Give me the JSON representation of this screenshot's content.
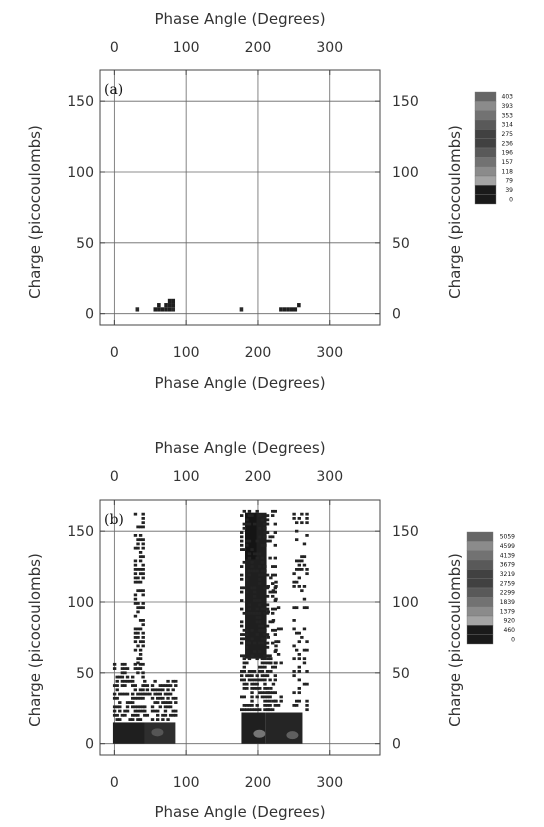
{
  "chart_data": [
    {
      "type": "heatmap",
      "panel_label": "(a)",
      "xlabel": "Phase Angle (Degrees)",
      "ylabel": "Charge (picocoulombs)",
      "xlim": [
        -20,
        370
      ],
      "ylim": [
        -8,
        172
      ],
      "xticks": [
        0,
        100,
        200,
        300
      ],
      "yticks": [
        0,
        50,
        100,
        150
      ],
      "grid": true,
      "colorbar": {
        "labels": [
          "403",
          "393",
          "353",
          "314",
          "275",
          "236",
          "196",
          "157",
          "118",
          "79",
          "39",
          "0"
        ]
      },
      "points": [
        {
          "x": 32,
          "y": 3,
          "level": 0.9
        },
        {
          "x": 57,
          "y": 3,
          "level": 0.95
        },
        {
          "x": 62,
          "y": 3,
          "level": 0.95
        },
        {
          "x": 67,
          "y": 3,
          "level": 0.95
        },
        {
          "x": 72,
          "y": 3,
          "level": 0.95
        },
        {
          "x": 77,
          "y": 3,
          "level": 0.95
        },
        {
          "x": 82,
          "y": 3,
          "level": 0.9
        },
        {
          "x": 62,
          "y": 6,
          "level": 0.95
        },
        {
          "x": 72,
          "y": 6,
          "level": 0.95
        },
        {
          "x": 77,
          "y": 6,
          "level": 0.95
        },
        {
          "x": 82,
          "y": 6,
          "level": 0.95
        },
        {
          "x": 77,
          "y": 9,
          "level": 0.95
        },
        {
          "x": 82,
          "y": 9,
          "level": 0.95
        },
        {
          "x": 177,
          "y": 3,
          "level": 0.9
        },
        {
          "x": 232,
          "y": 3,
          "level": 0.95
        },
        {
          "x": 237,
          "y": 3,
          "level": 0.95
        },
        {
          "x": 242,
          "y": 3,
          "level": 0.95
        },
        {
          "x": 247,
          "y": 3,
          "level": 0.95
        },
        {
          "x": 252,
          "y": 3,
          "level": 0.95
        },
        {
          "x": 257,
          "y": 6,
          "level": 0.95
        }
      ]
    },
    {
      "type": "heatmap",
      "panel_label": "(b)",
      "xlabel": "Phase Angle (Degrees)",
      "ylabel": "Charge (picocoulombs)",
      "xlim": [
        -20,
        370
      ],
      "ylim": [
        -8,
        172
      ],
      "xticks": [
        0,
        100,
        200,
        300
      ],
      "yticks": [
        0,
        50,
        100,
        150
      ],
      "grid": true,
      "colorbar": {
        "labels": [
          "5059",
          "4599",
          "4139",
          "3679",
          "3219",
          "2759",
          "2299",
          "1839",
          "1379",
          "920",
          "460",
          "0"
        ]
      },
      "regions": [
        {
          "x0": -2,
          "x1": 42,
          "y0": 0,
          "y1": 15,
          "level": 0.95
        },
        {
          "x0": 42,
          "x1": 85,
          "y0": 0,
          "y1": 15,
          "level": 0.88
        },
        {
          "x0": 177,
          "x1": 210,
          "y0": 0,
          "y1": 22,
          "level": 0.95
        },
        {
          "x0": 210,
          "x1": 262,
          "y0": 0,
          "y1": 22,
          "level": 0.92
        },
        {
          "x0": 182,
          "x1": 212,
          "y0": 60,
          "y1": 163,
          "level": 0.95
        },
        {
          "x0": 182,
          "x1": 198,
          "y0": 130,
          "y1": 163,
          "level": 1.0
        }
      ],
      "bright_spots": [
        {
          "x": 202,
          "y": 7,
          "level": 0.55
        },
        {
          "x": 248,
          "y": 6,
          "level": 0.65
        },
        {
          "x": 60,
          "y": 8,
          "level": 0.7
        }
      ],
      "scatter_regions": [
        {
          "x0": -2,
          "x1": 40,
          "y0": 15,
          "y1": 55,
          "density": 0.55,
          "seed": 11
        },
        {
          "x0": 40,
          "x1": 85,
          "y0": 15,
          "y1": 45,
          "density": 0.55,
          "seed": 12
        },
        {
          "x0": 27,
          "x1": 40,
          "y0": 55,
          "y1": 163,
          "density": 0.5,
          "seed": 13
        },
        {
          "x0": 175,
          "x1": 222,
          "y0": 22,
          "y1": 60,
          "density": 0.6,
          "seed": 14
        },
        {
          "x0": 175,
          "x1": 222,
          "y0": 60,
          "y1": 163,
          "density": 0.35,
          "seed": 15
        },
        {
          "x0": 212,
          "x1": 232,
          "y0": 22,
          "y1": 120,
          "density": 0.15,
          "seed": 16
        },
        {
          "x0": 248,
          "x1": 268,
          "y0": 22,
          "y1": 163,
          "density": 0.25,
          "seed": 17
        }
      ]
    }
  ]
}
